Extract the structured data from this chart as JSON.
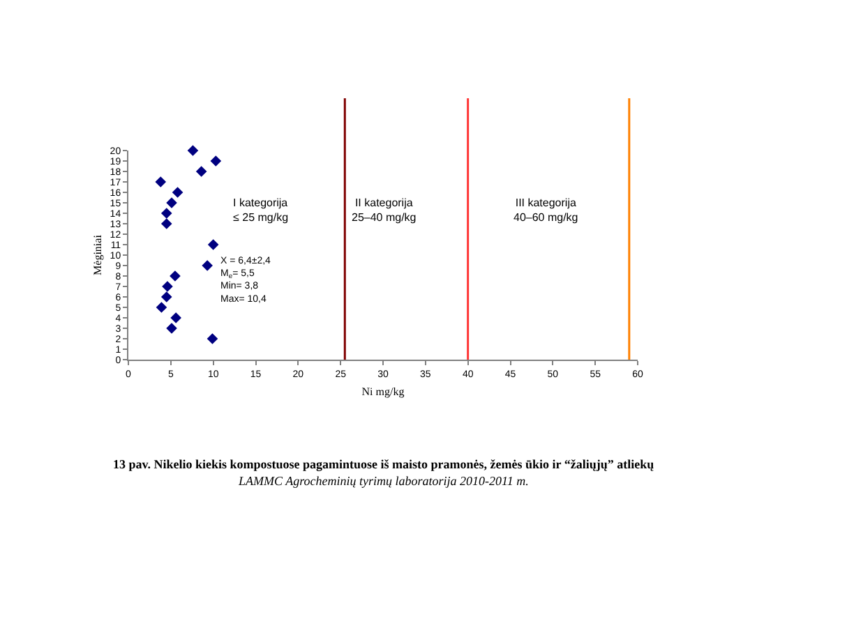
{
  "chart_data": {
    "type": "scatter",
    "xlabel": "Ni mg/kg",
    "ylabel": "Mėginiai",
    "x": [
      7.6,
      10.3,
      8.6,
      3.8,
      5.8,
      5.1,
      4.5,
      4.5,
      10.0,
      9.3,
      5.5,
      4.6,
      4.5,
      3.9,
      5.6,
      5.1,
      9.9
    ],
    "values": [
      20,
      19,
      18,
      17,
      16,
      15,
      14,
      13,
      11,
      9,
      8,
      7,
      6,
      5,
      4,
      3,
      2
    ],
    "color": "#000080",
    "marker": "diamond",
    "xlim": [
      0,
      60
    ],
    "xticks": [
      0,
      5,
      10,
      15,
      20,
      25,
      30,
      35,
      40,
      45,
      50,
      55,
      60
    ],
    "ylim": [
      0,
      20
    ],
    "yticks": [
      0,
      1,
      2,
      3,
      4,
      5,
      6,
      7,
      8,
      9,
      10,
      11,
      12,
      13,
      14,
      15,
      16,
      17,
      18,
      19,
      20
    ],
    "grid": false,
    "legend": false,
    "ref_lines": [
      {
        "axis": "x",
        "value": 25.5,
        "color": "#800000"
      },
      {
        "axis": "x",
        "value": 40,
        "color": "#ff3333"
      },
      {
        "axis": "x",
        "value": 59,
        "color": "#ff8000"
      }
    ],
    "annotations": [
      "I kategorija\n≤ 25 mg/kg",
      "II kategorija\n25–40 mg/kg",
      "III kategorija\n40–60 mg/kg",
      "X = 6,4±2,4\nM$_{e}$= 5,5\nMin= 3,8\nMax= 10,4",
      "13 pav. Nikelio kiekis kompostuose pagamintuose iš maisto pramonės, žemės ūkio ir “žaliųjų” atliekų",
      "LAMMC Agrocheminių tyrimų laboratorija 2010-2011 m."
    ]
  }
}
